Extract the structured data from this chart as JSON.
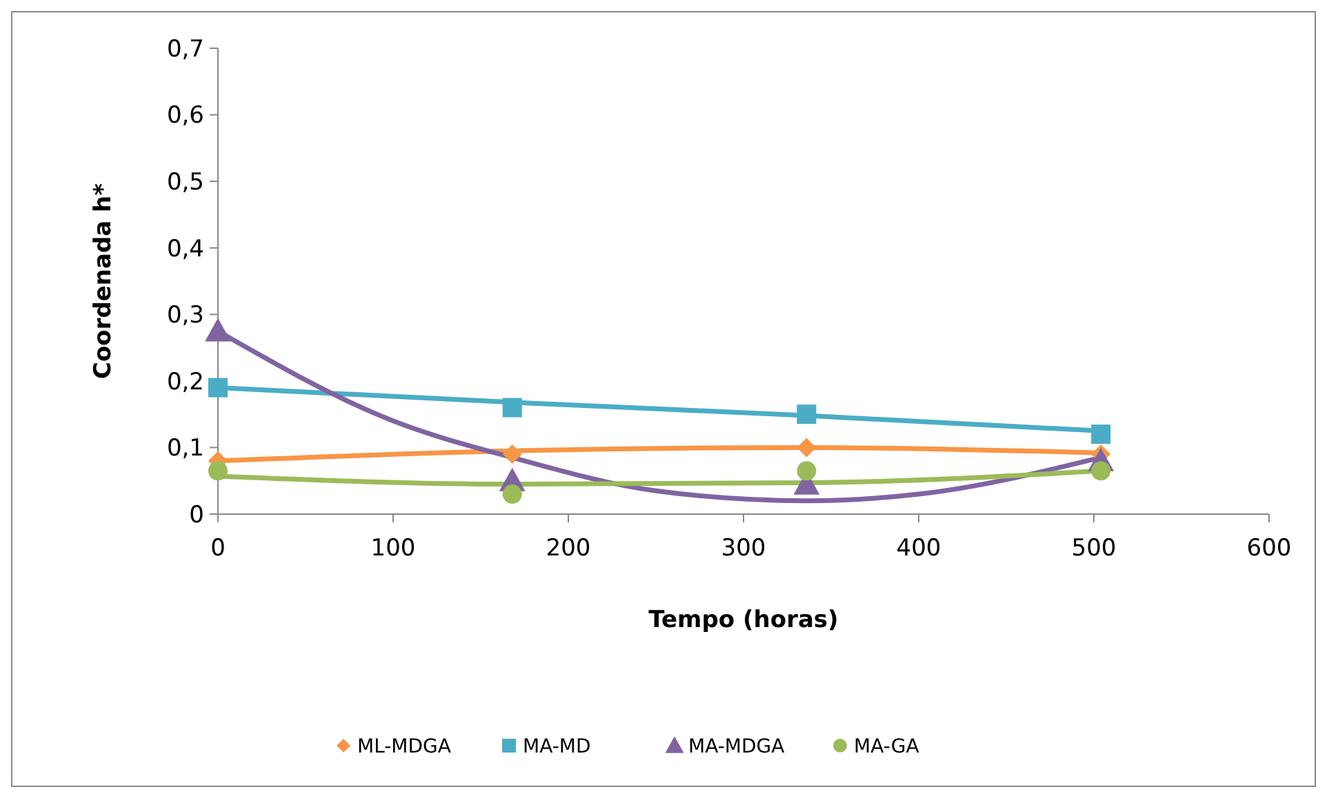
{
  "chart_data": {
    "type": "scatter",
    "xlabel": "Tempo (horas)",
    "ylabel": "Coordenada h*",
    "x": [
      0,
      168,
      336,
      504
    ],
    "xlim": [
      0,
      600
    ],
    "xticks": [
      0,
      100,
      200,
      300,
      400,
      500,
      600
    ],
    "ylim": [
      0,
      0.7
    ],
    "yticks": [
      {
        "value": 0,
        "label": "0"
      },
      {
        "value": 0.1,
        "label": "0,1"
      },
      {
        "value": 0.2,
        "label": "0,2"
      },
      {
        "value": 0.3,
        "label": "0,3"
      },
      {
        "value": 0.4,
        "label": "0,4"
      },
      {
        "value": 0.5,
        "label": "0,5"
      },
      {
        "value": 0.6,
        "label": "0,6"
      },
      {
        "value": 0.7,
        "label": "0,7"
      }
    ],
    "grid": false,
    "legend": "bottom",
    "series": [
      {
        "name": "ML-MDGA",
        "color": "#f79646",
        "marker": "diamond",
        "values": [
          0.08,
          0.09,
          0.1,
          0.09
        ]
      },
      {
        "name": "MA-MD",
        "color": "#4bacc6",
        "marker": "square",
        "values": [
          0.19,
          0.16,
          0.15,
          0.12
        ]
      },
      {
        "name": "MA-MDGA",
        "color": "#8064a2",
        "marker": "triangle",
        "values": [
          0.275,
          0.05,
          0.045,
          0.08
        ]
      },
      {
        "name": "MA-GA",
        "color": "#9bbb59",
        "marker": "circle",
        "values": [
          0.065,
          0.03,
          0.065,
          0.065
        ]
      },
      {
        "type": "line",
        "color": "#f79646",
        "marker": "none",
        "x": [
          0,
          168,
          336,
          504
        ],
        "values": [
          0.08,
          0.095,
          0.1,
          0.092
        ]
      },
      {
        "type": "line",
        "color": "#4bacc6",
        "marker": "none",
        "x": [
          0,
          168,
          336,
          504
        ],
        "values": [
          0.19,
          0.168,
          0.148,
          0.125
        ]
      },
      {
        "type": "line",
        "color": "#8064a2",
        "marker": "none",
        "x": [
          0,
          100,
          168,
          250,
          336,
          400,
          504
        ],
        "values": [
          0.275,
          0.14,
          0.085,
          0.035,
          0.02,
          0.03,
          0.085
        ]
      },
      {
        "type": "line",
        "color": "#9bbb59",
        "marker": "none",
        "x": [
          0,
          168,
          336,
          504
        ],
        "values": [
          0.057,
          0.045,
          0.047,
          0.065
        ]
      }
    ]
  }
}
